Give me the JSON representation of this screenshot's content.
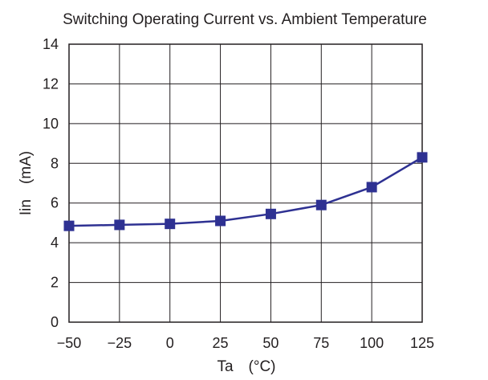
{
  "chart_data": {
    "type": "line",
    "title": "Switching Operating Current vs. Ambient Temperature",
    "xlabel": "Ta　(°C)",
    "ylabel": "Iin　(mA)",
    "x": [
      -50,
      -25,
      0,
      25,
      50,
      75,
      100,
      125
    ],
    "xticks": [
      "−50",
      "−25",
      "0",
      "25",
      "50",
      "75",
      "100",
      "125"
    ],
    "yticks": [
      "0",
      "2",
      "4",
      "6",
      "8",
      "10",
      "12",
      "14"
    ],
    "xlim": [
      -50,
      125
    ],
    "ylim": [
      0,
      14
    ],
    "grid": true,
    "series": [
      {
        "values": [
          4.85,
          4.9,
          4.95,
          5.1,
          5.45,
          5.9,
          6.8,
          8.3
        ],
        "color": "#2e3192"
      }
    ]
  }
}
